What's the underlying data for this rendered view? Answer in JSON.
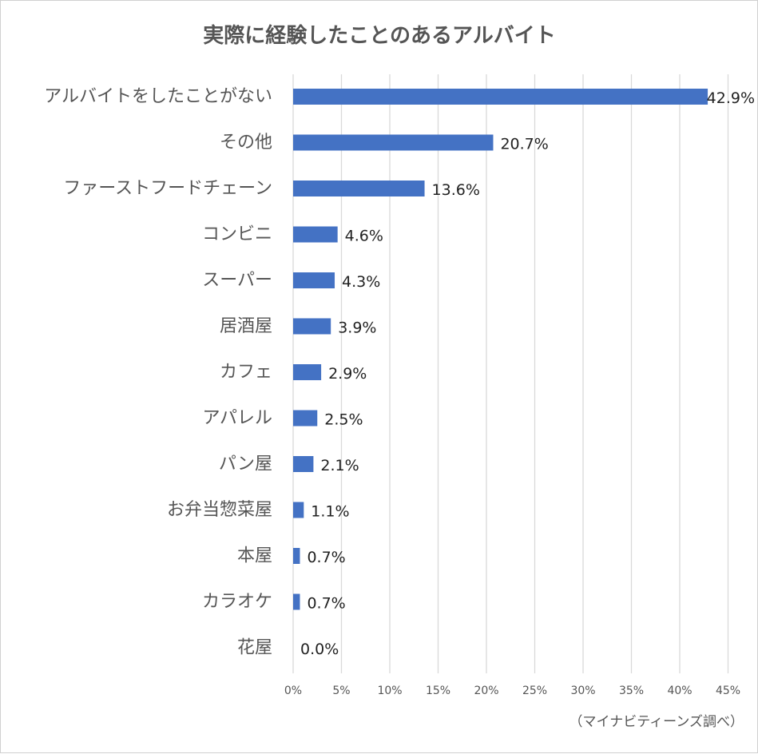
{
  "chart_data": {
    "type": "bar",
    "orientation": "horizontal",
    "title": "実際に経験したことのあるアルバイト",
    "source_note": "（マイナビティーンズ調べ）",
    "categories": [
      "アルバイトをしたことがない",
      "その他",
      "ファーストフードチェーン",
      "コンビニ",
      "スーパー",
      "居酒屋",
      "カフェ",
      "アパレル",
      "パン屋",
      "お弁当惣菜屋",
      "本屋",
      "カラオケ",
      "花屋"
    ],
    "values": [
      42.9,
      20.7,
      13.6,
      4.6,
      4.3,
      3.9,
      2.9,
      2.5,
      2.1,
      1.1,
      0.7,
      0.7,
      0.0
    ],
    "value_labels": [
      "42.9%",
      "20.7%",
      "13.6%",
      "4.6%",
      "4.3%",
      "3.9%",
      "2.9%",
      "2.5%",
      "2.1%",
      "1.1%",
      "0.7%",
      "0.7%",
      "0.0%"
    ],
    "x_ticks": [
      0,
      5,
      10,
      15,
      20,
      25,
      30,
      35,
      40,
      45
    ],
    "x_tick_labels": [
      "0%",
      "5%",
      "10%",
      "15%",
      "20%",
      "25%",
      "30%",
      "35%",
      "40%",
      "45%"
    ],
    "xlim": [
      0,
      45
    ],
    "grid": "vertical",
    "legend": "none",
    "bar_color": "#4472c4",
    "grid_color": "#d9d9d9"
  }
}
